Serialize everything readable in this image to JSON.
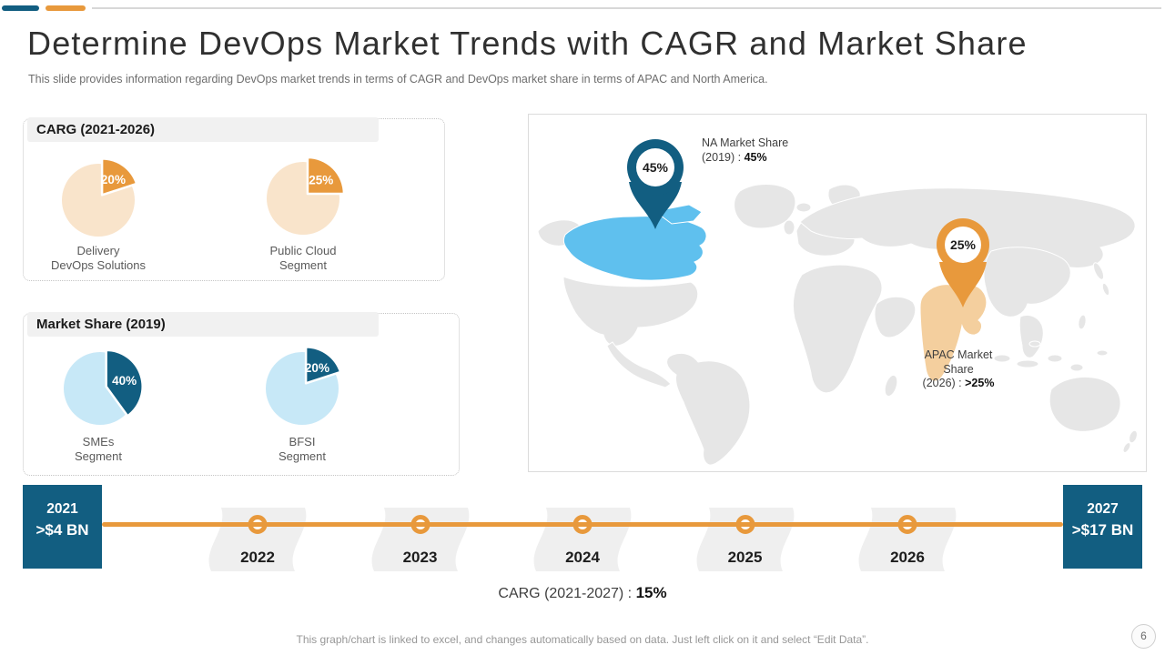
{
  "colors": {
    "teal": "#125e81",
    "orange": "#e8993c",
    "peach": "#f9e4cb",
    "light_blue": "#c7e8f7",
    "canada_blue": "#5fc0ee",
    "apac_orange": "#f4cf9e",
    "map_gray": "#e6e6e6",
    "wave_gray": "#efefef",
    "header_bar_gray": "#f1f1f1",
    "line_gray": "#d8d8d8"
  },
  "header": {
    "title": "Determine DevOps Market Trends with CAGR and Market Share",
    "subtitle": "This slide provides information regarding DevOps market trends in terms of CAGR and DevOps market share in terms of APAC and North America."
  },
  "cagr_section": {
    "heading": "CARG (2021-2026)",
    "pies": [
      {
        "value_label": "20%",
        "percent": 20,
        "scheme": "orange_scheme",
        "caption_line1": "Delivery",
        "caption_line2": "DevOps Solutions"
      },
      {
        "value_label": "25%",
        "percent": 25,
        "scheme": "orange_scheme",
        "caption_line1": "Public Cloud",
        "caption_line2": "Segment"
      }
    ]
  },
  "market_share_section": {
    "heading": "Market Share (2019)",
    "pies": [
      {
        "value_label": "40%",
        "percent": 40,
        "scheme": "blue_scheme",
        "caption_line1": "SMEs",
        "caption_line2": "Segment"
      },
      {
        "value_label": "20%",
        "percent": 20,
        "scheme": "blue_scheme",
        "caption_line1": "BFSI",
        "caption_line2": "Segment"
      }
    ]
  },
  "map": {
    "na_pin_value": "45%",
    "apac_pin_value": "25%",
    "na_label": {
      "line1": "NA Market Share",
      "prefix": "(2019) :",
      "value": "45%"
    },
    "apac_label": {
      "line1": "APAC Market Share",
      "prefix": "(2026) :",
      "value": ">25%"
    }
  },
  "timeline": {
    "start": {
      "year": "2021",
      "value": ">$4 BN"
    },
    "end": {
      "year": "2027",
      "value": ">$17 BN"
    },
    "years": [
      "2022",
      "2023",
      "2024",
      "2025",
      "2026"
    ],
    "cagr_caption": {
      "prefix": "CARG (2021-2027) :",
      "value": "15%"
    }
  },
  "footer": {
    "note": "This graph/chart is linked to excel, and changes automatically based on data. Just left click on it and select “Edit Data”.",
    "page": "6"
  },
  "chart_data": [
    {
      "type": "pie",
      "title": "CARG (2021-2026)",
      "series": [
        {
          "name": "Delivery DevOps Solutions",
          "value": 20
        },
        {
          "name": "Public Cloud Segment",
          "value": 25
        }
      ],
      "unit": "%"
    },
    {
      "type": "pie",
      "title": "Market Share (2019)",
      "series": [
        {
          "name": "SMEs Segment",
          "value": 40
        },
        {
          "name": "BFSI Segment",
          "value": 20
        }
      ],
      "unit": "%"
    },
    {
      "type": "map",
      "title": "Regional market share",
      "points": [
        {
          "region": "North America",
          "label": "NA Market Share (2019)",
          "value": "45%"
        },
        {
          "region": "APAC",
          "label": "APAC Market Share (2026)",
          "value": ">25%"
        }
      ]
    },
    {
      "type": "line",
      "title": "DevOps market size timeline",
      "x": [
        2021,
        2022,
        2023,
        2024,
        2025,
        2026,
        2027
      ],
      "annotations": {
        "2021": ">$4 BN",
        "2027": ">$17 BN"
      },
      "cagr": "15%"
    }
  ]
}
